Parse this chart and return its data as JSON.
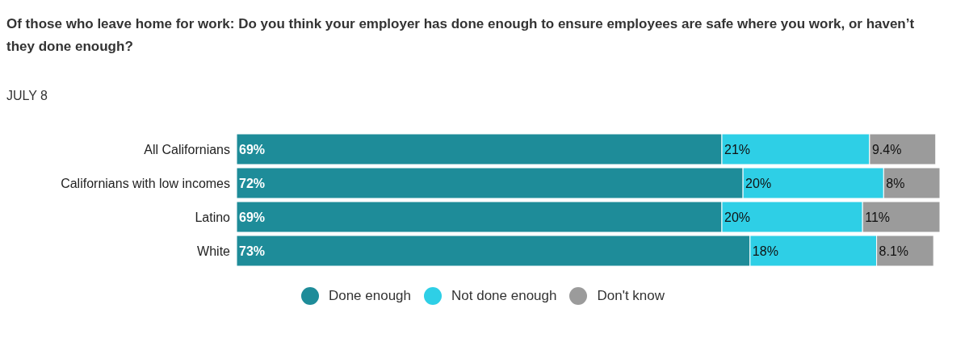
{
  "chart_data": {
    "type": "bar",
    "orientation": "horizontal",
    "stacked": true,
    "title": "Of those who leave home for work: Do you think your employer has done enough to ensure employees are safe where you work, or haven’t they done enough?",
    "subtitle": "JULY 8",
    "categories": [
      "All Californians",
      "Californians with low incomes",
      "Latino",
      "White"
    ],
    "series": [
      {
        "name": "Done enough",
        "color": "#1e8c99",
        "values": [
          69,
          72,
          69,
          73
        ],
        "value_labels": [
          "69%",
          "72%",
          "69%",
          "73%"
        ]
      },
      {
        "name": "Not done enough",
        "color": "#2ecfe6",
        "values": [
          21,
          20,
          20,
          18
        ],
        "value_labels": [
          "21%",
          "20%",
          "20%",
          "18%"
        ]
      },
      {
        "name": "Don't know",
        "color": "#9b9b9b",
        "values": [
          9.4,
          8,
          11,
          8.1
        ],
        "value_labels": [
          "9.4%",
          "8%",
          "11%",
          "8.1%"
        ]
      }
    ],
    "legend": "bottom"
  }
}
